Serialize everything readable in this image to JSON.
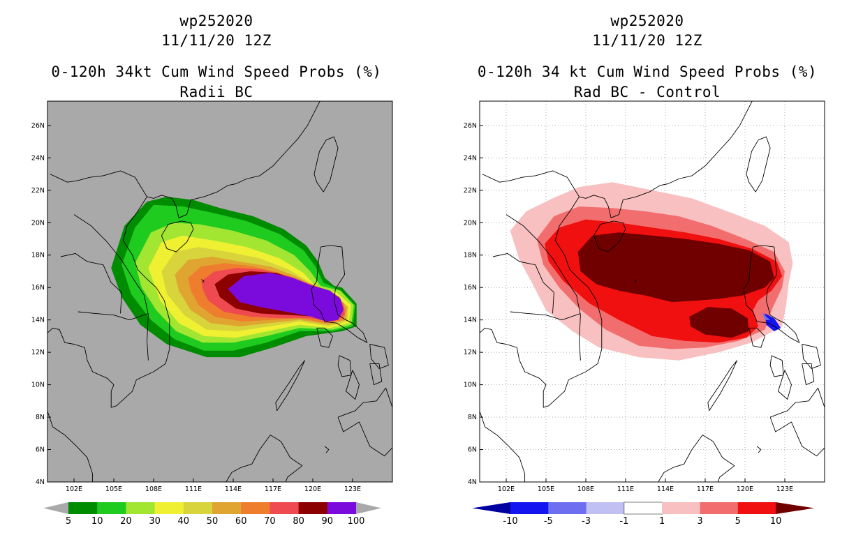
{
  "chart_data": [
    {
      "type": "heatmap",
      "title_lines": [
        "wp252020",
        "11/11/20 12Z",
        "0-120h 34kt Cum Wind Speed Probs (%)",
        "Radii BC"
      ],
      "xlabel": "",
      "ylabel": "",
      "xlim": [
        100,
        126
      ],
      "ylim": [
        4,
        27.5
      ],
      "grid": false,
      "background_color": "#a9a9a9",
      "x_ticks": [
        "102E",
        "105E",
        "108E",
        "111E",
        "114E",
        "117E",
        "120E",
        "123E"
      ],
      "y_ticks": [
        "4N",
        "6N",
        "8N",
        "10N",
        "12N",
        "14N",
        "16N",
        "18N",
        "20N",
        "22N",
        "24N",
        "26N"
      ],
      "colorbar": {
        "labels": [
          "5",
          "10",
          "20",
          "30",
          "40",
          "50",
          "60",
          "70",
          "80",
          "90",
          "100"
        ],
        "colors": [
          "#008c00",
          "#1fcb1f",
          "#a2e632",
          "#f0f032",
          "#d8d43c",
          "#e0a531",
          "#ee7e2d",
          "#ef4a50",
          "#8c0000",
          "#7b0bdc"
        ],
        "end_color": "#a9a9a9"
      },
      "levels": [
        5,
        10,
        20,
        30,
        40,
        50,
        60,
        70,
        80,
        90
      ]
    },
    {
      "type": "heatmap",
      "title_lines": [
        "wp252020",
        "11/11/20 12Z",
        "0-120h 34 kt Cum Wind Speed Probs (%)",
        "Rad BC - Control"
      ],
      "xlabel": "",
      "ylabel": "",
      "xlim": [
        100,
        126
      ],
      "ylim": [
        4,
        27.5
      ],
      "grid": true,
      "background_color": "#ffffff",
      "x_ticks": [
        "102E",
        "105E",
        "108E",
        "111E",
        "114E",
        "117E",
        "120E",
        "123E"
      ],
      "y_ticks": [
        "4N",
        "6N",
        "8N",
        "10N",
        "12N",
        "14N",
        "16N",
        "18N",
        "20N",
        "22N",
        "24N",
        "26N"
      ],
      "colorbar": {
        "labels": [
          "-10",
          "-5",
          "-3",
          "-1",
          "1",
          "3",
          "5",
          "10"
        ],
        "colors": [
          "#0000a0",
          "#1414f0",
          "#6e6ef0",
          "#c0c0f5",
          "#ffffff",
          "#f8c0c0",
          "#f26e6e",
          "#f01010",
          "#700000"
        ]
      },
      "levels": [
        -10,
        -5,
        -3,
        -1,
        1,
        3,
        5,
        10
      ]
    }
  ]
}
